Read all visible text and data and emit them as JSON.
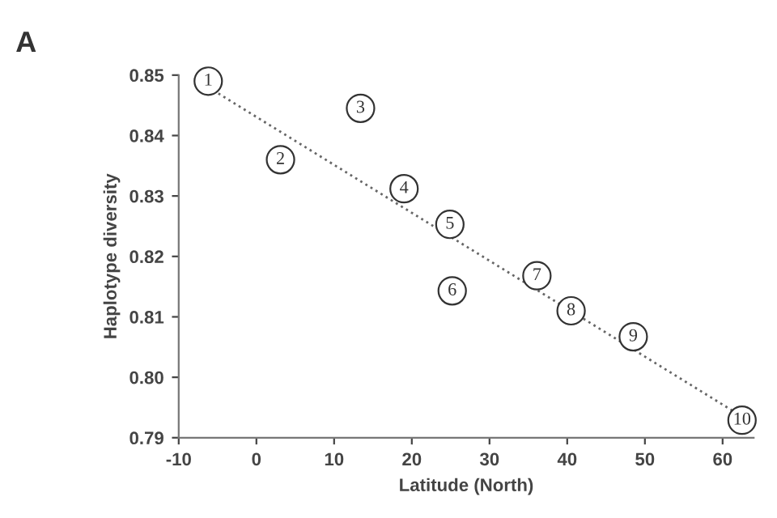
{
  "chart_data": {
    "type": "scatter",
    "title": "A",
    "xlabel": "Latitude (North)",
    "ylabel": "Haplotype diversity",
    "xlim": [
      -10,
      64
    ],
    "xticks": [
      -10,
      0,
      10,
      20,
      30,
      40,
      50,
      60
    ],
    "ylim": [
      0.79,
      0.85
    ],
    "yticks": [
      {
        "value": 0.79,
        "label": "0.79"
      },
      {
        "value": 0.8,
        "label": "0.80"
      },
      {
        "value": 0.81,
        "label": "0.81"
      },
      {
        "value": 0.82,
        "label": "0.82"
      },
      {
        "value": 0.83,
        "label": "0.83"
      },
      {
        "value": 0.84,
        "label": "0.84"
      },
      {
        "value": 0.85,
        "label": "0.85"
      }
    ],
    "grid": false,
    "series": [
      {
        "color": "#333333",
        "marker": "circle",
        "x": [
          -6.2,
          3.1,
          13.4,
          19.0,
          24.9,
          25.2,
          36.1,
          40.5,
          48.5,
          62.5
        ],
        "values": [
          0.849,
          0.836,
          0.8445,
          0.8312,
          0.8253,
          0.8143,
          0.8168,
          0.811,
          0.8067,
          0.7929
        ]
      },
      {
        "type": "line",
        "color": "#666666",
        "line_style": "dotted",
        "marker": "none",
        "x": [
          -6.2,
          62.5
        ],
        "values": [
          0.848,
          0.7935
        ]
      }
    ],
    "annotations": [
      {
        "text": "1",
        "x": -6.2,
        "y": 0.849
      },
      {
        "text": "2",
        "x": 3.1,
        "y": 0.836
      },
      {
        "text": "3",
        "x": 13.4,
        "y": 0.8445
      },
      {
        "text": "4",
        "x": 19.0,
        "y": 0.8312
      },
      {
        "text": "5",
        "x": 24.9,
        "y": 0.8253
      },
      {
        "text": "6",
        "x": 25.2,
        "y": 0.8143
      },
      {
        "text": "7",
        "x": 36.1,
        "y": 0.8168
      },
      {
        "text": "8",
        "x": 40.5,
        "y": 0.811
      },
      {
        "text": "9",
        "x": 48.5,
        "y": 0.8067
      },
      {
        "text": "10",
        "x": 62.5,
        "y": 0.7929
      }
    ]
  }
}
